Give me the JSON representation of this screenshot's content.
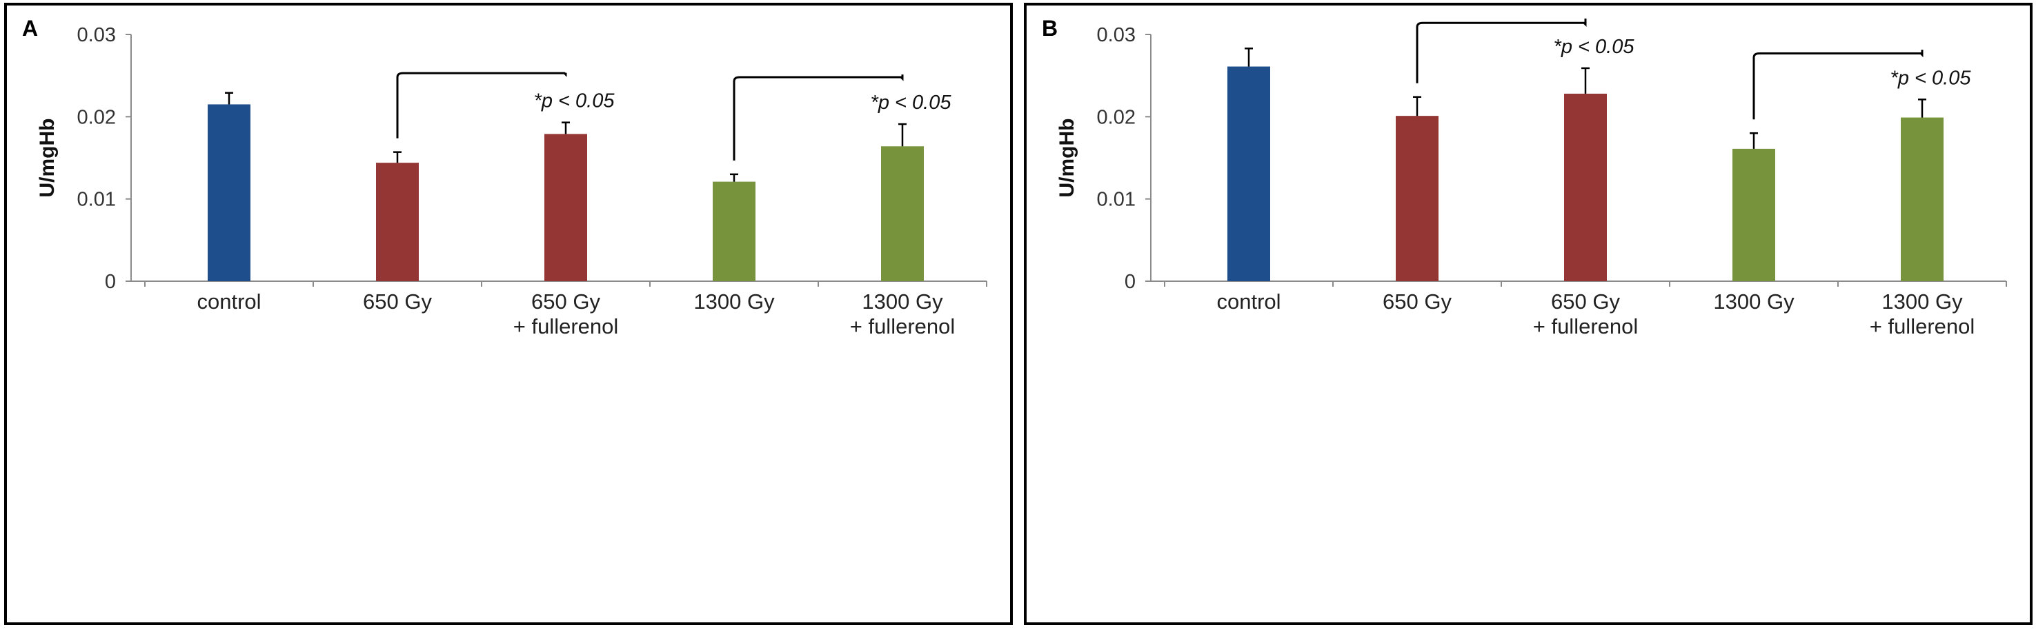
{
  "colors": {
    "control": "#1F4E8C",
    "dose650": "#943634",
    "dose1300": "#77933C"
  },
  "chart_data": [
    {
      "type": "bar",
      "panel_label": "A",
      "ylabel": "U/mgHb",
      "ylim": [
        0,
        0.03
      ],
      "yticks": [
        "0",
        "0.01",
        "0.02",
        "0.03"
      ],
      "ytick_values": [
        0,
        0.01,
        0.02,
        0.03
      ],
      "categories": [
        {
          "line1": "control",
          "line2": ""
        },
        {
          "line1": "650 Gy",
          "line2": ""
        },
        {
          "line1": "650 Gy",
          "line2": "+ fullerenol"
        },
        {
          "line1": "1300 Gy",
          "line2": ""
        },
        {
          "line1": "1300 Gy",
          "line2": "+ fullerenol"
        }
      ],
      "values": [
        0.0215,
        0.0144,
        0.0179,
        0.0121,
        0.0164
      ],
      "errors": [
        0.0014,
        0.0013,
        0.0014,
        0.0009,
        0.0027
      ],
      "bar_colors": [
        "control",
        "dose650",
        "dose650",
        "dose1300",
        "dose1300"
      ],
      "significance": [
        {
          "from": 1,
          "to": 2,
          "level": 0.0253,
          "label": "*p < 0.05"
        },
        {
          "from": 3,
          "to": 4,
          "level": 0.0248,
          "label": "*p < 0.05"
        }
      ]
    },
    {
      "type": "bar",
      "panel_label": "B",
      "ylabel": "U/mgHb",
      "ylim": [
        0,
        0.03
      ],
      "yticks": [
        "0",
        "0.01",
        "0.02",
        "0.03"
      ],
      "ytick_values": [
        0,
        0.01,
        0.02,
        0.03
      ],
      "categories": [
        {
          "line1": "control",
          "line2": ""
        },
        {
          "line1": "650 Gy",
          "line2": ""
        },
        {
          "line1": "650 Gy",
          "line2": "+ fullerenol"
        },
        {
          "line1": "1300 Gy",
          "line2": ""
        },
        {
          "line1": "1300 Gy",
          "line2": "+ fullerenol"
        }
      ],
      "values": [
        0.0261,
        0.0201,
        0.0228,
        0.0161,
        0.0199
      ],
      "errors": [
        0.0022,
        0.0023,
        0.0031,
        0.0019,
        0.0022
      ],
      "bar_colors": [
        "control",
        "dose650",
        "dose650",
        "dose1300",
        "dose1300"
      ],
      "significance": [
        {
          "from": 1,
          "to": 2,
          "level": 0.0314,
          "label": "*p < 0.05"
        },
        {
          "from": 3,
          "to": 4,
          "level": 0.0277,
          "label": "*p < 0.05"
        }
      ]
    }
  ]
}
